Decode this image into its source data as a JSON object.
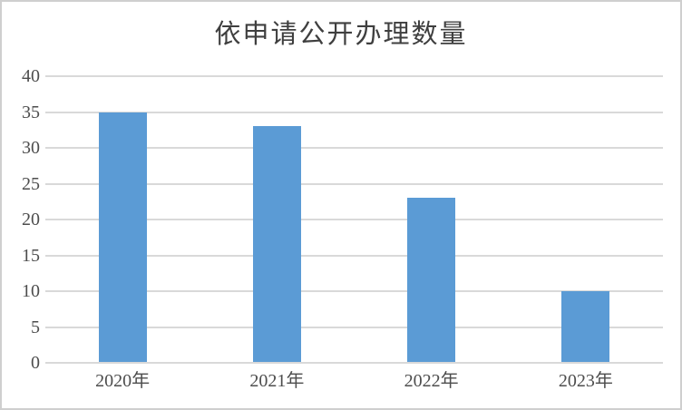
{
  "title": "依申请公开办理数量",
  "colors": {
    "bar": "#5b9bd5",
    "gridline": "#d9d9d9",
    "axis_text": "#4d4d4d",
    "title_text": "#3f3f3f",
    "border": "#cfcfcf",
    "background": "#ffffff"
  },
  "chart_data": {
    "type": "bar",
    "title": "依申请公开办理数量",
    "categories": [
      "2020年",
      "2021年",
      "2022年",
      "2023年"
    ],
    "values": [
      35,
      33,
      23,
      10
    ],
    "xlabel": "",
    "ylabel": "",
    "ylim": [
      0,
      40
    ],
    "ytick_step": 5,
    "yticks": [
      0,
      5,
      10,
      15,
      20,
      25,
      30,
      35,
      40
    ],
    "grid": true,
    "legend": false
  }
}
